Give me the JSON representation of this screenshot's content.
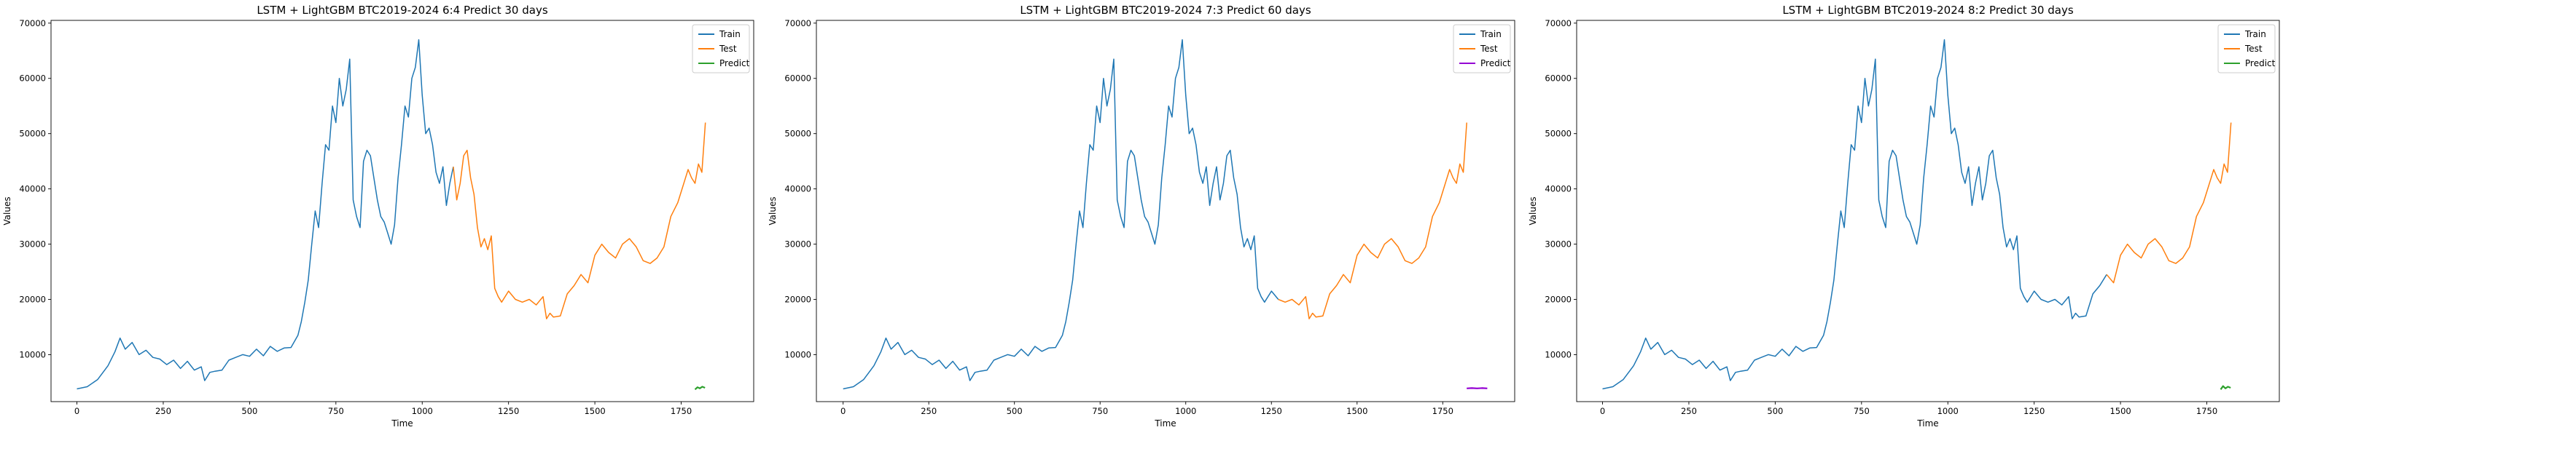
{
  "chart_data": [
    {
      "type": "line",
      "title": "LSTM + LightGBM BTC2019-2024 6:4 Predict 30 days",
      "xlabel": "Time",
      "ylabel": "Values",
      "xlim": [
        -75,
        1960
      ],
      "ylim": [
        1500,
        70500
      ],
      "xticks": [
        0,
        250,
        500,
        750,
        1000,
        1250,
        1500,
        1750
      ],
      "yticks": [
        10000,
        20000,
        30000,
        40000,
        50000,
        60000,
        70000
      ],
      "legend": "top-right",
      "grid": false,
      "series": [
        {
          "name": "Train",
          "color": "#1f77b4",
          "x": [
            0,
            30,
            60,
            90,
            110,
            125,
            140,
            160,
            180,
            200,
            220,
            240,
            260,
            280,
            300,
            320,
            340,
            360,
            370,
            385,
            400,
            420,
            440,
            460,
            480,
            500,
            520,
            540,
            560,
            580,
            600,
            620,
            640,
            650,
            660,
            670,
            680,
            690,
            700,
            710,
            720,
            730,
            740,
            750,
            760,
            770,
            780,
            790,
            800,
            810,
            820,
            830,
            840,
            850,
            860,
            870,
            880,
            890,
            900,
            910,
            920,
            930,
            940,
            950,
            960,
            970,
            980,
            990,
            1000,
            1010,
            1020,
            1030,
            1040,
            1050,
            1060,
            1070,
            1080,
            1090
          ],
          "y": [
            3800,
            4200,
            5500,
            8000,
            10500,
            13000,
            11000,
            12200,
            10000,
            10800,
            9500,
            9200,
            8200,
            9000,
            7500,
            8800,
            7200,
            7800,
            5300,
            6800,
            7000,
            7200,
            9000,
            9500,
            10000,
            9700,
            11000,
            9800,
            11500,
            10600,
            11200,
            11300,
            13500,
            16000,
            19500,
            23500,
            30000,
            36000,
            33000,
            41000,
            48000,
            47000,
            55000,
            52000,
            60000,
            55000,
            58000,
            63500,
            38000,
            35000,
            33000,
            45000,
            47000,
            46000,
            42000,
            38000,
            35000,
            34000,
            32000,
            30000,
            33500,
            42000,
            48000,
            55000,
            53000,
            60000,
            62000,
            67000,
            57000,
            50000,
            51000,
            48000,
            43000,
            41000,
            44000,
            37000,
            41000,
            44000
          ]
        },
        {
          "name": "Test",
          "color": "#ff7f0e",
          "x": [
            1090,
            1100,
            1110,
            1120,
            1130,
            1140,
            1150,
            1160,
            1170,
            1180,
            1190,
            1200,
            1210,
            1220,
            1230,
            1250,
            1270,
            1290,
            1310,
            1330,
            1350,
            1360,
            1370,
            1380,
            1400,
            1420,
            1440,
            1460,
            1480,
            1500,
            1520,
            1540,
            1560,
            1580,
            1600,
            1620,
            1640,
            1660,
            1680,
            1700,
            1720,
            1740,
            1760,
            1770,
            1780,
            1790,
            1800,
            1810,
            1820
          ],
          "y": [
            44000,
            38000,
            41000,
            46000,
            47000,
            42000,
            39000,
            33000,
            29500,
            31000,
            29000,
            31500,
            22000,
            20500,
            19500,
            21500,
            20000,
            19500,
            20000,
            19000,
            20500,
            16500,
            17500,
            16800,
            17000,
            21000,
            22500,
            24500,
            23000,
            28000,
            30000,
            28500,
            27500,
            30000,
            31000,
            29500,
            27000,
            26500,
            27500,
            29500,
            35000,
            37500,
            41500,
            43500,
            42000,
            41000,
            44500,
            43000,
            52000
          ]
        },
        {
          "name": "Predict",
          "color": "#2ca02c",
          "x": [
            1790,
            1797,
            1804,
            1811,
            1819
          ],
          "y": [
            3700,
            4100,
            3900,
            4200,
            4000
          ]
        }
      ]
    },
    {
      "type": "line",
      "title": "LSTM + LightGBM BTC2019-2024 7:3 Predict 60 days",
      "xlabel": "Time",
      "ylabel": "Values",
      "xlim": [
        -78,
        1960
      ],
      "ylim": [
        1500,
        70500
      ],
      "xticks": [
        0,
        250,
        500,
        750,
        1000,
        1250,
        1500,
        1750
      ],
      "yticks": [
        10000,
        20000,
        30000,
        40000,
        50000,
        60000,
        70000
      ],
      "legend": "top-right",
      "grid": false,
      "series": [
        {
          "name": "Train",
          "color": "#1f77b4",
          "x": [
            0,
            30,
            60,
            90,
            110,
            125,
            140,
            160,
            180,
            200,
            220,
            240,
            260,
            280,
            300,
            320,
            340,
            360,
            370,
            385,
            400,
            420,
            440,
            460,
            480,
            500,
            520,
            540,
            560,
            580,
            600,
            620,
            640,
            650,
            660,
            670,
            680,
            690,
            700,
            710,
            720,
            730,
            740,
            750,
            760,
            770,
            780,
            790,
            800,
            810,
            820,
            830,
            840,
            850,
            860,
            870,
            880,
            890,
            900,
            910,
            920,
            930,
            940,
            950,
            960,
            970,
            980,
            990,
            1000,
            1010,
            1020,
            1030,
            1040,
            1050,
            1060,
            1070,
            1080,
            1090,
            1100,
            1110,
            1120,
            1130,
            1140,
            1150,
            1160,
            1170,
            1180,
            1190,
            1200,
            1210,
            1220,
            1230,
            1250,
            1270
          ],
          "y": [
            3800,
            4200,
            5500,
            8000,
            10500,
            13000,
            11000,
            12200,
            10000,
            10800,
            9500,
            9200,
            8200,
            9000,
            7500,
            8800,
            7200,
            7800,
            5300,
            6800,
            7000,
            7200,
            9000,
            9500,
            10000,
            9700,
            11000,
            9800,
            11500,
            10600,
            11200,
            11300,
            13500,
            16000,
            19500,
            23500,
            30000,
            36000,
            33000,
            41000,
            48000,
            47000,
            55000,
            52000,
            60000,
            55000,
            58000,
            63500,
            38000,
            35000,
            33000,
            45000,
            47000,
            46000,
            42000,
            38000,
            35000,
            34000,
            32000,
            30000,
            33500,
            42000,
            48000,
            55000,
            53000,
            60000,
            62000,
            67000,
            57000,
            50000,
            51000,
            48000,
            43000,
            41000,
            44000,
            37000,
            41000,
            44000,
            38000,
            41000,
            46000,
            47000,
            42000,
            39000,
            33000,
            29500,
            31000,
            29000,
            31500,
            22000,
            20500,
            19500,
            21500,
            20000
          ]
        },
        {
          "name": "Test",
          "color": "#ff7f0e",
          "x": [
            1270,
            1290,
            1310,
            1330,
            1350,
            1360,
            1370,
            1380,
            1400,
            1420,
            1440,
            1460,
            1480,
            1500,
            1520,
            1540,
            1560,
            1580,
            1600,
            1620,
            1640,
            1660,
            1680,
            1700,
            1720,
            1740,
            1760,
            1770,
            1780,
            1790,
            1800,
            1810,
            1820
          ],
          "y": [
            20000,
            19500,
            20000,
            19000,
            20500,
            16500,
            17500,
            16800,
            17000,
            21000,
            22500,
            24500,
            23000,
            28000,
            30000,
            28500,
            27500,
            30000,
            31000,
            29500,
            27000,
            26500,
            27500,
            29500,
            35000,
            37500,
            41500,
            43500,
            42000,
            41000,
            44500,
            43000,
            52000
          ]
        },
        {
          "name": "Predict",
          "color": "#9400d3",
          "x": [
            1820,
            1835,
            1850,
            1865,
            1880
          ],
          "y": [
            3900,
            3950,
            3900,
            3950,
            3900
          ]
        }
      ]
    },
    {
      "type": "line",
      "title": "LSTM + LightGBM BTC2019-2024 8:2 Predict 30 days",
      "xlabel": "Time",
      "ylabel": "Values",
      "xlim": [
        -75,
        1960
      ],
      "ylim": [
        1500,
        70500
      ],
      "xticks": [
        0,
        250,
        500,
        750,
        1000,
        1250,
        1500,
        1750
      ],
      "yticks": [
        10000,
        20000,
        30000,
        40000,
        50000,
        60000,
        70000
      ],
      "legend": "top-right",
      "grid": false,
      "series": [
        {
          "name": "Train",
          "color": "#1f77b4",
          "x": [
            0,
            30,
            60,
            90,
            110,
            125,
            140,
            160,
            180,
            200,
            220,
            240,
            260,
            280,
            300,
            320,
            340,
            360,
            370,
            385,
            400,
            420,
            440,
            460,
            480,
            500,
            520,
            540,
            560,
            580,
            600,
            620,
            640,
            650,
            660,
            670,
            680,
            690,
            700,
            710,
            720,
            730,
            740,
            750,
            760,
            770,
            780,
            790,
            800,
            810,
            820,
            830,
            840,
            850,
            860,
            870,
            880,
            890,
            900,
            910,
            920,
            930,
            940,
            950,
            960,
            970,
            980,
            990,
            1000,
            1010,
            1020,
            1030,
            1040,
            1050,
            1060,
            1070,
            1080,
            1090,
            1100,
            1110,
            1120,
            1130,
            1140,
            1150,
            1160,
            1170,
            1180,
            1190,
            1200,
            1210,
            1220,
            1230,
            1250,
            1270,
            1290,
            1310,
            1330,
            1350,
            1360,
            1370,
            1380,
            1400,
            1420,
            1440,
            1460
          ],
          "y": [
            3800,
            4200,
            5500,
            8000,
            10500,
            13000,
            11000,
            12200,
            10000,
            10800,
            9500,
            9200,
            8200,
            9000,
            7500,
            8800,
            7200,
            7800,
            5300,
            6800,
            7000,
            7200,
            9000,
            9500,
            10000,
            9700,
            11000,
            9800,
            11500,
            10600,
            11200,
            11300,
            13500,
            16000,
            19500,
            23500,
            30000,
            36000,
            33000,
            41000,
            48000,
            47000,
            55000,
            52000,
            60000,
            55000,
            58000,
            63500,
            38000,
            35000,
            33000,
            45000,
            47000,
            46000,
            42000,
            38000,
            35000,
            34000,
            32000,
            30000,
            33500,
            42000,
            48000,
            55000,
            53000,
            60000,
            62000,
            67000,
            57000,
            50000,
            51000,
            48000,
            43000,
            41000,
            44000,
            37000,
            41000,
            44000,
            38000,
            41000,
            46000,
            47000,
            42000,
            39000,
            33000,
            29500,
            31000,
            29000,
            31500,
            22000,
            20500,
            19500,
            21500,
            20000,
            19500,
            20000,
            19000,
            20500,
            16500,
            17500,
            16800,
            17000,
            21000,
            22500,
            24500
          ]
        },
        {
          "name": "Test",
          "color": "#ff7f0e",
          "x": [
            1460,
            1480,
            1500,
            1520,
            1540,
            1560,
            1580,
            1600,
            1620,
            1640,
            1660,
            1680,
            1700,
            1720,
            1740,
            1760,
            1770,
            1780,
            1790,
            1800,
            1810,
            1820
          ],
          "y": [
            24500,
            23000,
            28000,
            30000,
            28500,
            27500,
            30000,
            31000,
            29500,
            27000,
            26500,
            27500,
            29500,
            35000,
            37500,
            41500,
            43500,
            42000,
            41000,
            44500,
            43000,
            52000
          ]
        },
        {
          "name": "Predict",
          "color": "#2ca02c",
          "x": [
            1790,
            1797,
            1804,
            1811,
            1819
          ],
          "y": [
            3700,
            4300,
            3900,
            4200,
            4000
          ]
        }
      ]
    }
  ]
}
